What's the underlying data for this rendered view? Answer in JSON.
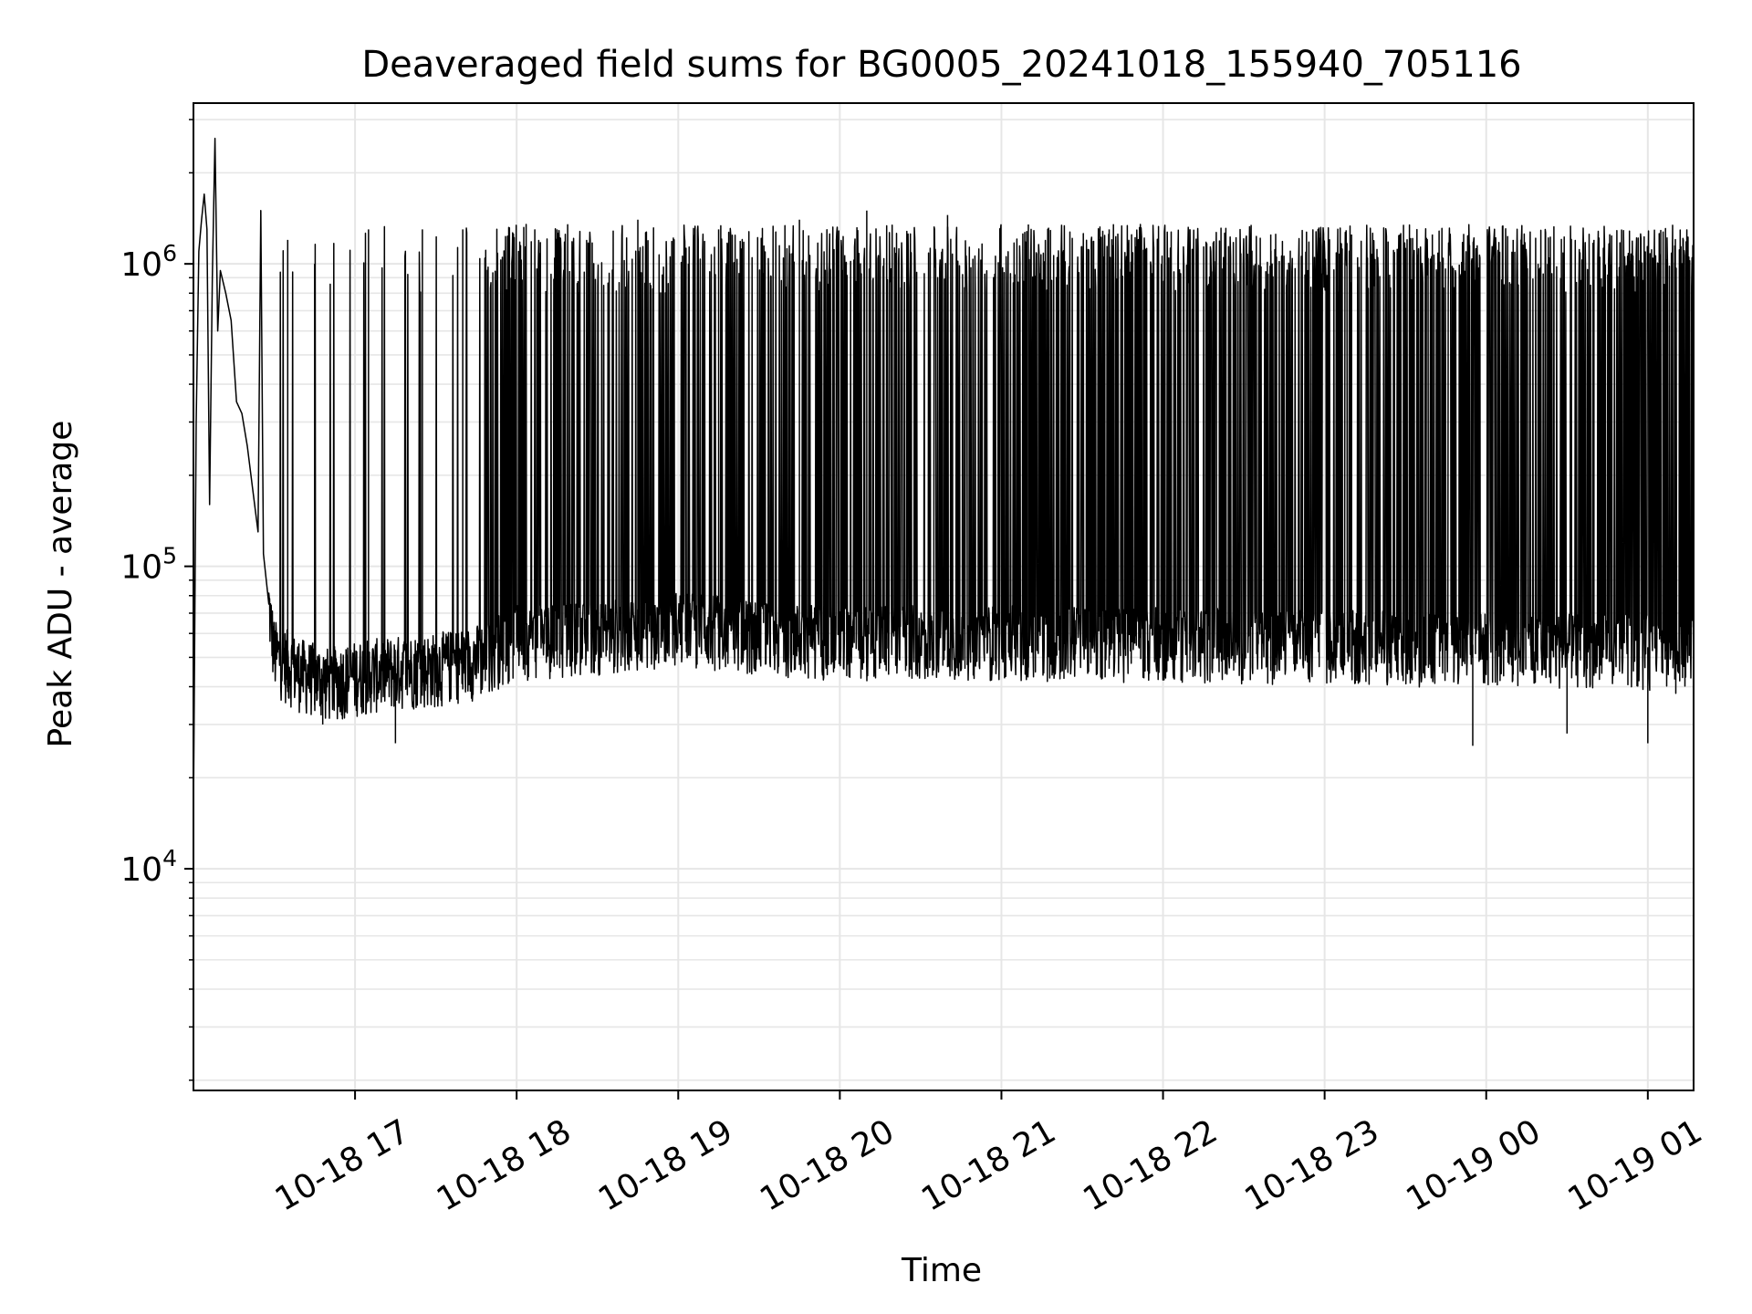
{
  "chart_data": {
    "type": "line",
    "title": "Deaveraged field sums for BG0005_20241018_155940_705116",
    "xlabel": "Time",
    "ylabel": "Peak ADU - average",
    "xscale": "time",
    "yscale": "log",
    "xlim": [
      "2024-10-18 16:00",
      "2024-10-19 01:17"
    ],
    "ylim": [
      1850,
      3400000
    ],
    "xticks": [
      {
        "value": "2024-10-18 17:00",
        "label": "10-18 17"
      },
      {
        "value": "2024-10-18 18:00",
        "label": "10-18 18"
      },
      {
        "value": "2024-10-18 19:00",
        "label": "10-18 19"
      },
      {
        "value": "2024-10-18 20:00",
        "label": "10-18 20"
      },
      {
        "value": "2024-10-18 21:00",
        "label": "10-18 21"
      },
      {
        "value": "2024-10-18 22:00",
        "label": "10-18 22"
      },
      {
        "value": "2024-10-18 23:00",
        "label": "10-18 23"
      },
      {
        "value": "2024-10-19 00:00",
        "label": "10-19 00"
      },
      {
        "value": "2024-10-19 01:00",
        "label": "10-19 01"
      }
    ],
    "yticks": [
      {
        "value": 10000,
        "base": "10",
        "exp": "4"
      },
      {
        "value": 100000,
        "base": "10",
        "exp": "5"
      },
      {
        "value": 1000000,
        "base": "10",
        "exp": "6"
      }
    ],
    "grid": true,
    "line_color": "#000000",
    "grid_color": "#e6e6e6",
    "series": [
      {
        "points": [
          [
            "2024-10-18 16:00",
            15000
          ],
          [
            "2024-10-18 16:01",
            300000
          ],
          [
            "2024-10-18 16:02",
            1100000
          ],
          [
            "2024-10-18 16:03",
            1400000
          ],
          [
            "2024-10-18 16:04",
            1700000
          ],
          [
            "2024-10-18 16:05",
            1300000
          ],
          [
            "2024-10-18 16:06",
            160000
          ],
          [
            "2024-10-18 16:07",
            900000
          ],
          [
            "2024-10-18 16:08",
            2600000
          ],
          [
            "2024-10-18 16:09",
            600000
          ],
          [
            "2024-10-18 16:10",
            950000
          ],
          [
            "2024-10-18 16:12",
            800000
          ],
          [
            "2024-10-18 16:14",
            650000
          ],
          [
            "2024-10-18 16:16",
            350000
          ],
          [
            "2024-10-18 16:18",
            320000
          ],
          [
            "2024-10-18 16:20",
            250000
          ],
          [
            "2024-10-18 16:22",
            180000
          ],
          [
            "2024-10-18 16:24",
            130000
          ],
          [
            "2024-10-18 16:25",
            1500000
          ],
          [
            "2024-10-18 16:26",
            110000
          ],
          [
            "2024-10-18 16:28",
            75000
          ],
          [
            "2024-10-18 16:30",
            52000
          ],
          [
            "2024-10-18 16:35",
            48000
          ],
          [
            "2024-10-18 16:40",
            45000
          ],
          [
            "2024-10-18 16:50",
            42000
          ],
          [
            "2024-10-18 17:00",
            44000
          ],
          [
            "2024-10-18 17:15",
            46000
          ],
          [
            "2024-10-18 17:30",
            47000
          ],
          [
            "2024-10-18 17:45",
            50000
          ],
          [
            "2024-10-18 18:00",
            58000
          ],
          [
            "2024-10-18 18:30",
            60000
          ],
          [
            "2024-10-18 19:00",
            65000
          ],
          [
            "2024-10-18 19:30",
            60000
          ],
          [
            "2024-10-18 20:00",
            58000
          ],
          [
            "2024-10-18 21:00",
            58000
          ],
          [
            "2024-10-18 22:00",
            57000
          ],
          [
            "2024-10-18 23:00",
            56000
          ],
          [
            "2024-10-19 00:00",
            55000
          ],
          [
            "2024-10-19 01:00",
            54000
          ],
          [
            "2024-10-19 01:17",
            52000
          ]
        ],
        "spikes": [
          {
            "time": "2024-10-18 16:25",
            "value": 1500000
          },
          {
            "time": "2024-10-18 16:35",
            "value": 1200000
          },
          {
            "time": "2024-10-18 16:45",
            "value": 1000000
          },
          {
            "time": "2024-10-18 17:05",
            "value": 1300000
          },
          {
            "time": "2024-10-18 17:25",
            "value": 1300000
          },
          {
            "time": "2024-10-18 17:40",
            "value": 1300000
          },
          {
            "time": "2024-10-18 18:15",
            "value": 1300000
          },
          {
            "time": "2024-10-18 18:45",
            "value": 1400000
          },
          {
            "time": "2024-10-18 19:15",
            "value": 1300000
          },
          {
            "time": "2024-10-18 19:45",
            "value": 1400000
          },
          {
            "time": "2024-10-18 20:10",
            "value": 1500000
          },
          {
            "time": "2024-10-18 20:40",
            "value": 1450000
          },
          {
            "time": "2024-10-18 21:10",
            "value": 1350000
          },
          {
            "time": "2024-10-18 21:40",
            "value": 1300000
          },
          {
            "time": "2024-10-18 22:10",
            "value": 1300000
          },
          {
            "time": "2024-10-18 22:40",
            "value": 1250000
          },
          {
            "time": "2024-10-18 23:10",
            "value": 1250000
          },
          {
            "time": "2024-10-18 23:40",
            "value": 1250000
          },
          {
            "time": "2024-10-19 00:10",
            "value": 1200000
          },
          {
            "time": "2024-10-19 00:40",
            "value": 1200000
          },
          {
            "time": "2024-10-19 01:10",
            "value": 1150000
          }
        ],
        "lows": [
          {
            "time": "2024-10-18 16:48",
            "value": 30000
          },
          {
            "time": "2024-10-18 17:15",
            "value": 26000
          },
          {
            "time": "2024-10-18 23:55",
            "value": 25500
          },
          {
            "time": "2024-10-19 00:30",
            "value": 28000
          },
          {
            "time": "2024-10-19 01:00",
            "value": 26000
          }
        ]
      }
    ]
  }
}
